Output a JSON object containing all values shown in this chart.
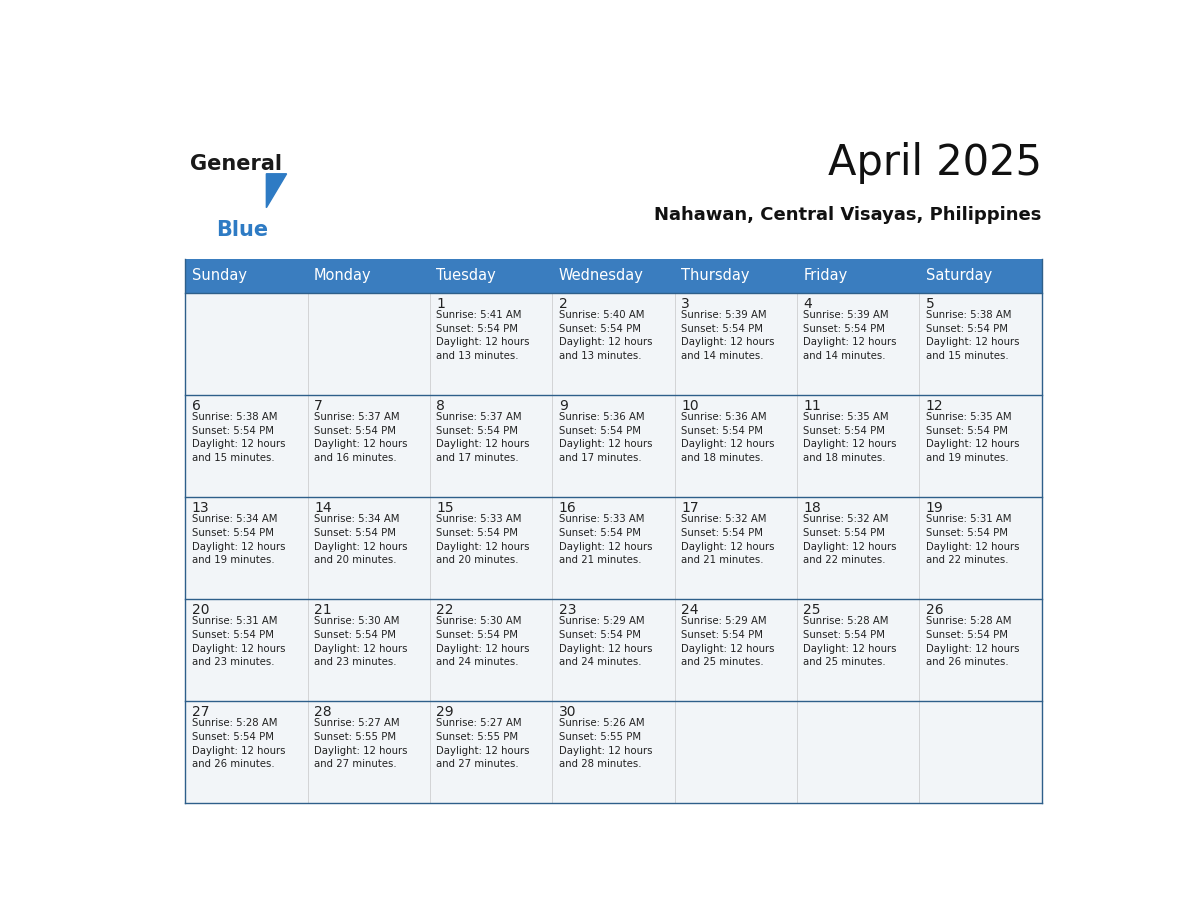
{
  "title": "April 2025",
  "subtitle": "Nahawan, Central Visayas, Philippines",
  "header_bg": "#3A7DBF",
  "header_text_color": "#FFFFFF",
  "border_color": "#2E5F8A",
  "text_color": "#222222",
  "cell_bg": "#F2F5F8",
  "days_of_week": [
    "Sunday",
    "Monday",
    "Tuesday",
    "Wednesday",
    "Thursday",
    "Friday",
    "Saturday"
  ],
  "weeks": [
    [
      {
        "day": null,
        "info": null
      },
      {
        "day": null,
        "info": null
      },
      {
        "day": 1,
        "info": "Sunrise: 5:41 AM\nSunset: 5:54 PM\nDaylight: 12 hours\nand 13 minutes."
      },
      {
        "day": 2,
        "info": "Sunrise: 5:40 AM\nSunset: 5:54 PM\nDaylight: 12 hours\nand 13 minutes."
      },
      {
        "day": 3,
        "info": "Sunrise: 5:39 AM\nSunset: 5:54 PM\nDaylight: 12 hours\nand 14 minutes."
      },
      {
        "day": 4,
        "info": "Sunrise: 5:39 AM\nSunset: 5:54 PM\nDaylight: 12 hours\nand 14 minutes."
      },
      {
        "day": 5,
        "info": "Sunrise: 5:38 AM\nSunset: 5:54 PM\nDaylight: 12 hours\nand 15 minutes."
      }
    ],
    [
      {
        "day": 6,
        "info": "Sunrise: 5:38 AM\nSunset: 5:54 PM\nDaylight: 12 hours\nand 15 minutes."
      },
      {
        "day": 7,
        "info": "Sunrise: 5:37 AM\nSunset: 5:54 PM\nDaylight: 12 hours\nand 16 minutes."
      },
      {
        "day": 8,
        "info": "Sunrise: 5:37 AM\nSunset: 5:54 PM\nDaylight: 12 hours\nand 17 minutes."
      },
      {
        "day": 9,
        "info": "Sunrise: 5:36 AM\nSunset: 5:54 PM\nDaylight: 12 hours\nand 17 minutes."
      },
      {
        "day": 10,
        "info": "Sunrise: 5:36 AM\nSunset: 5:54 PM\nDaylight: 12 hours\nand 18 minutes."
      },
      {
        "day": 11,
        "info": "Sunrise: 5:35 AM\nSunset: 5:54 PM\nDaylight: 12 hours\nand 18 minutes."
      },
      {
        "day": 12,
        "info": "Sunrise: 5:35 AM\nSunset: 5:54 PM\nDaylight: 12 hours\nand 19 minutes."
      }
    ],
    [
      {
        "day": 13,
        "info": "Sunrise: 5:34 AM\nSunset: 5:54 PM\nDaylight: 12 hours\nand 19 minutes."
      },
      {
        "day": 14,
        "info": "Sunrise: 5:34 AM\nSunset: 5:54 PM\nDaylight: 12 hours\nand 20 minutes."
      },
      {
        "day": 15,
        "info": "Sunrise: 5:33 AM\nSunset: 5:54 PM\nDaylight: 12 hours\nand 20 minutes."
      },
      {
        "day": 16,
        "info": "Sunrise: 5:33 AM\nSunset: 5:54 PM\nDaylight: 12 hours\nand 21 minutes."
      },
      {
        "day": 17,
        "info": "Sunrise: 5:32 AM\nSunset: 5:54 PM\nDaylight: 12 hours\nand 21 minutes."
      },
      {
        "day": 18,
        "info": "Sunrise: 5:32 AM\nSunset: 5:54 PM\nDaylight: 12 hours\nand 22 minutes."
      },
      {
        "day": 19,
        "info": "Sunrise: 5:31 AM\nSunset: 5:54 PM\nDaylight: 12 hours\nand 22 minutes."
      }
    ],
    [
      {
        "day": 20,
        "info": "Sunrise: 5:31 AM\nSunset: 5:54 PM\nDaylight: 12 hours\nand 23 minutes."
      },
      {
        "day": 21,
        "info": "Sunrise: 5:30 AM\nSunset: 5:54 PM\nDaylight: 12 hours\nand 23 minutes."
      },
      {
        "day": 22,
        "info": "Sunrise: 5:30 AM\nSunset: 5:54 PM\nDaylight: 12 hours\nand 24 minutes."
      },
      {
        "day": 23,
        "info": "Sunrise: 5:29 AM\nSunset: 5:54 PM\nDaylight: 12 hours\nand 24 minutes."
      },
      {
        "day": 24,
        "info": "Sunrise: 5:29 AM\nSunset: 5:54 PM\nDaylight: 12 hours\nand 25 minutes."
      },
      {
        "day": 25,
        "info": "Sunrise: 5:28 AM\nSunset: 5:54 PM\nDaylight: 12 hours\nand 25 minutes."
      },
      {
        "day": 26,
        "info": "Sunrise: 5:28 AM\nSunset: 5:54 PM\nDaylight: 12 hours\nand 26 minutes."
      }
    ],
    [
      {
        "day": 27,
        "info": "Sunrise: 5:28 AM\nSunset: 5:54 PM\nDaylight: 12 hours\nand 26 minutes."
      },
      {
        "day": 28,
        "info": "Sunrise: 5:27 AM\nSunset: 5:55 PM\nDaylight: 12 hours\nand 27 minutes."
      },
      {
        "day": 29,
        "info": "Sunrise: 5:27 AM\nSunset: 5:55 PM\nDaylight: 12 hours\nand 27 minutes."
      },
      {
        "day": 30,
        "info": "Sunrise: 5:26 AM\nSunset: 5:55 PM\nDaylight: 12 hours\nand 28 minutes."
      },
      {
        "day": null,
        "info": null
      },
      {
        "day": null,
        "info": null
      },
      {
        "day": null,
        "info": null
      }
    ]
  ],
  "logo_color_general": "#1a1a1a",
  "logo_color_blue": "#2E7BC4",
  "logo_triangle_color": "#2E7BC4"
}
